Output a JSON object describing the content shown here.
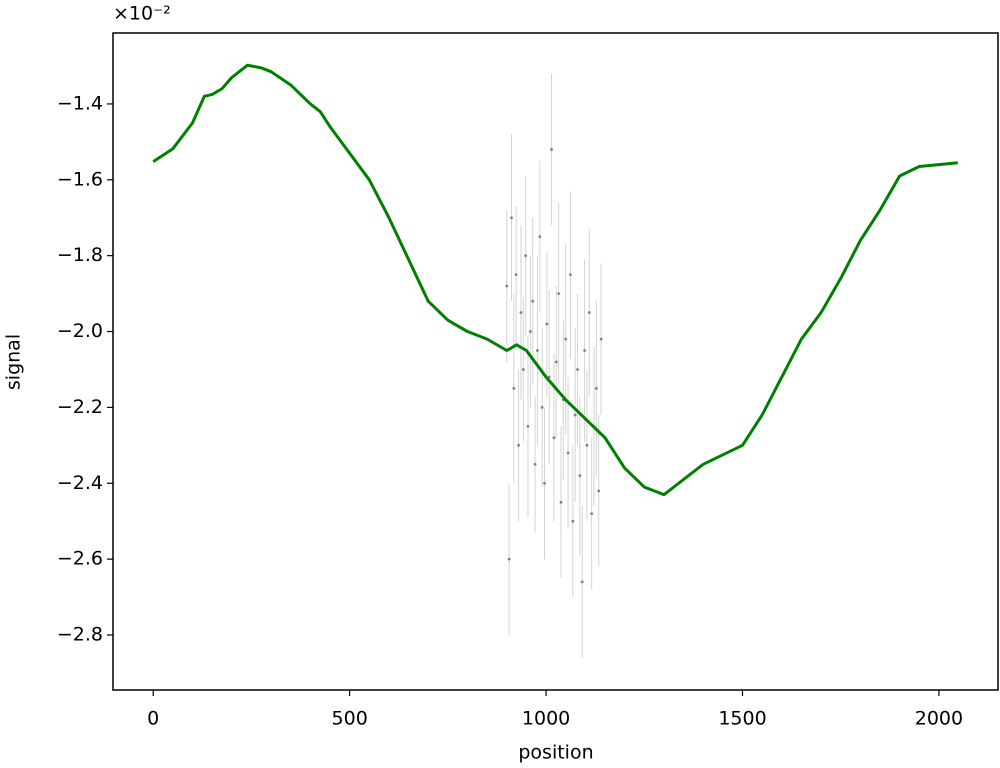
{
  "chart_data": {
    "type": "line",
    "x_label": "position",
    "y_label": "signal",
    "y_offset_label": "×10⁻²",
    "xlim": [
      -102.4,
      2150.4
    ],
    "ylim": [
      -2.945,
      -1.213
    ],
    "xticks": [
      0,
      500,
      1000,
      1500,
      2000
    ],
    "yticks": [
      {
        "value": -2.8,
        "label": "−2.8"
      },
      {
        "value": -2.6,
        "label": "−2.6"
      },
      {
        "value": -2.4,
        "label": "−2.4"
      },
      {
        "value": -2.2,
        "label": "−2.2"
      },
      {
        "value": -2.0,
        "label": "−2.0"
      },
      {
        "value": -1.8,
        "label": "−1.8"
      },
      {
        "value": -1.6,
        "label": "−1.6"
      },
      {
        "value": -1.4,
        "label": "−1.4"
      }
    ],
    "series": [
      {
        "color": "#008000",
        "x": [
          0,
          50,
          100,
          130,
          150,
          175,
          200,
          240,
          275,
          300,
          350,
          400,
          425,
          450,
          500,
          550,
          600,
          650,
          700,
          750,
          800,
          850,
          900,
          925,
          950,
          1000,
          1050,
          1100,
          1150,
          1200,
          1250,
          1300,
          1350,
          1400,
          1450,
          1500,
          1550,
          1600,
          1650,
          1700,
          1750,
          1800,
          1850,
          1900,
          1950,
          2000,
          2048
        ],
        "values": [
          -1.552,
          -1.518,
          -1.45,
          -1.38,
          -1.375,
          -1.36,
          -1.33,
          -1.298,
          -1.305,
          -1.315,
          -1.35,
          -1.4,
          -1.42,
          -1.46,
          -1.53,
          -1.6,
          -1.7,
          -1.81,
          -1.92,
          -1.97,
          -2.0,
          -2.02,
          -2.05,
          -2.035,
          -2.05,
          -2.12,
          -2.18,
          -2.23,
          -2.28,
          -2.36,
          -2.41,
          -2.43,
          -2.39,
          -2.35,
          -2.325,
          -2.3,
          -2.22,
          -2.12,
          -2.02,
          -1.95,
          -1.86,
          -1.76,
          -1.68,
          -1.59,
          -1.565,
          -1.56,
          -1.555
        ]
      },
      {
        "type": "errorbar",
        "color": "#808080",
        "x": [
          900,
          906,
          912,
          918,
          924,
          930,
          936,
          942,
          948,
          954,
          960,
          966,
          972,
          978,
          984,
          990,
          996,
          1002,
          1008,
          1014,
          1020,
          1026,
          1032,
          1038,
          1044,
          1050,
          1056,
          1062,
          1068,
          1074,
          1080,
          1086,
          1092,
          1098,
          1104,
          1110,
          1116,
          1122,
          1128,
          1134,
          1140
        ],
        "values": [
          -1.88,
          -2.6,
          -1.7,
          -2.15,
          -1.85,
          -2.3,
          -1.95,
          -2.1,
          -1.8,
          -2.25,
          -2.0,
          -1.92,
          -2.35,
          -2.05,
          -1.75,
          -2.2,
          -2.4,
          -1.98,
          -2.12,
          -1.52,
          -2.28,
          -2.08,
          -1.9,
          -2.45,
          -2.18,
          -2.02,
          -2.32,
          -1.85,
          -2.5,
          -2.22,
          -2.1,
          -2.38,
          -2.66,
          -2.05,
          -2.3,
          -1.95,
          -2.48,
          -2.25,
          -2.15,
          -2.42,
          -2.02
        ],
        "errors": [
          0.2,
          0.2,
          0.22,
          0.25,
          0.18,
          0.2,
          0.23,
          0.19,
          0.21,
          0.24,
          0.2,
          0.22,
          0.18,
          0.25,
          0.2,
          0.21,
          0.2,
          0.19,
          0.23,
          0.2,
          0.22,
          0.2,
          0.24,
          0.2,
          0.21,
          0.25,
          0.2,
          0.22,
          0.2,
          0.23,
          0.2,
          0.21,
          0.2,
          0.24,
          0.2,
          0.22,
          0.2,
          0.21,
          0.23,
          0.2,
          0.2
        ]
      }
    ]
  }
}
